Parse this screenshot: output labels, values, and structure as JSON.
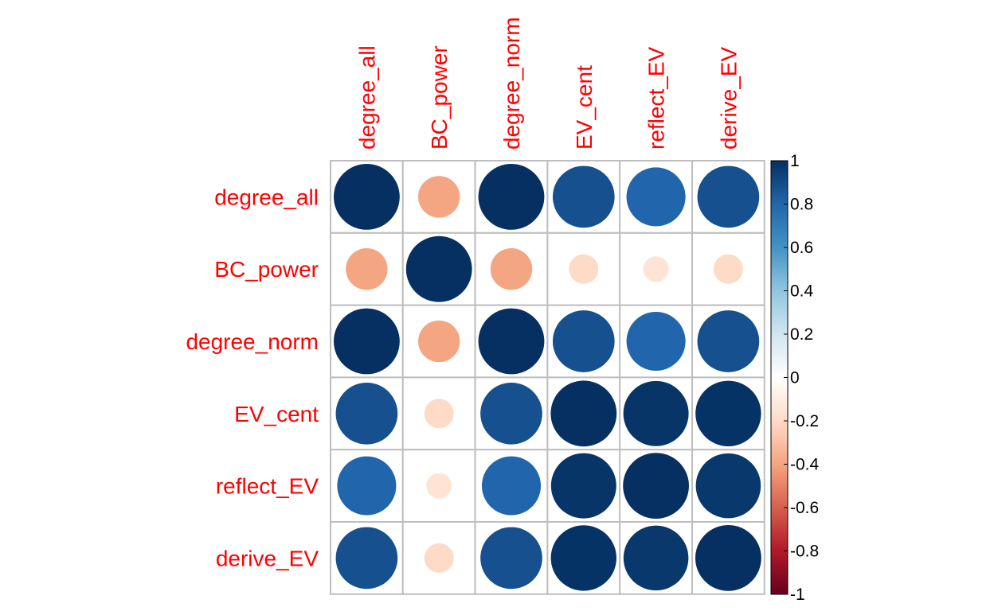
{
  "chart_data": {
    "type": "heatmap",
    "style": "correlation-circles",
    "variables": [
      "degree_all",
      "BC_power",
      "degree_norm",
      "EV_cent",
      "reflect_EV",
      "derive_EV"
    ],
    "matrix": [
      [
        1.0,
        -0.4,
        1.0,
        0.88,
        0.8,
        0.88
      ],
      [
        -0.4,
        1.0,
        -0.4,
        -0.2,
        -0.15,
        -0.2
      ],
      [
        1.0,
        -0.4,
        1.0,
        0.88,
        0.8,
        0.88
      ],
      [
        0.88,
        -0.2,
        0.88,
        1.0,
        0.98,
        0.99
      ],
      [
        0.8,
        -0.15,
        0.8,
        0.98,
        1.0,
        0.97
      ],
      [
        0.88,
        -0.2,
        0.88,
        0.99,
        0.97,
        1.0
      ]
    ],
    "colorbar": {
      "range": [
        -1,
        1
      ],
      "ticks": [
        "1",
        "0.8",
        "0.6",
        "0.4",
        "0.2",
        "0",
        "-0.2",
        "-0.4",
        "-0.6",
        "-0.8",
        "-1"
      ],
      "tick_values": [
        1,
        0.8,
        0.6,
        0.4,
        0.2,
        0,
        -0.2,
        -0.4,
        -0.6,
        -0.8,
        -1
      ],
      "colors_low_to_high": [
        "#67001F",
        "#B2182B",
        "#D6604D",
        "#F4A582",
        "#FDDBC7",
        "#FFFFFF",
        "#D1E5F0",
        "#92C5DE",
        "#4393C3",
        "#2166AC",
        "#053061"
      ]
    },
    "label_color": "#ff0000",
    "grid_color": "#bebebe"
  }
}
